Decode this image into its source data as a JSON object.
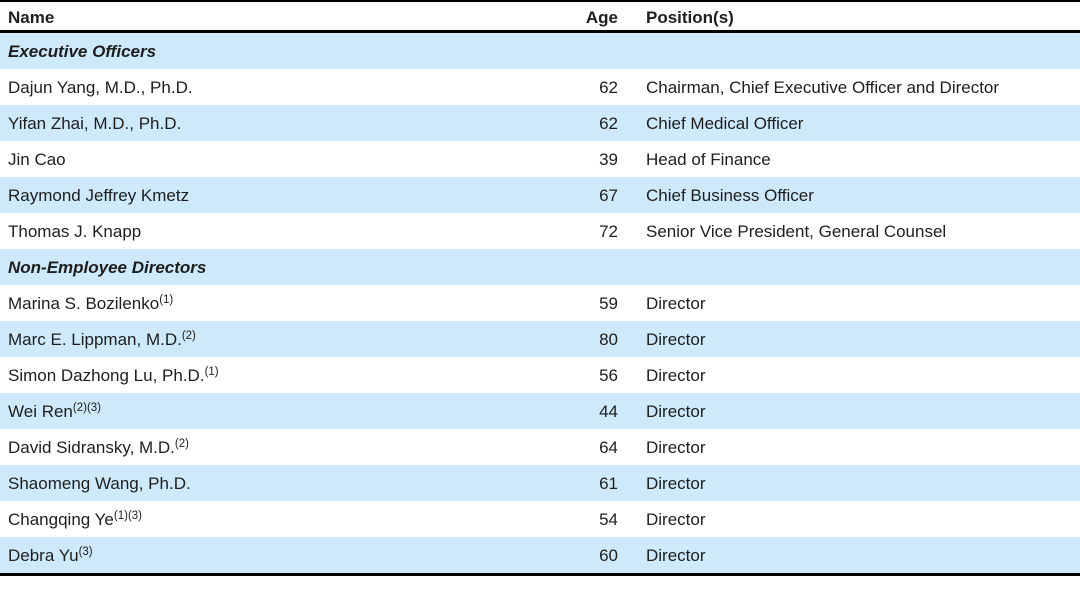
{
  "colors": {
    "row_highlight": "#cde9fa",
    "text": "#1e1e1e",
    "rule": "#000000",
    "row_alt": "#ffffff"
  },
  "table": {
    "columns": [
      "Name",
      "Age",
      "Position(s)"
    ],
    "rows": [
      {
        "type": "section",
        "label": "Executive Officers",
        "age": "",
        "position": ""
      },
      {
        "type": "person",
        "name": "Dajun Yang, M.D., Ph.D.",
        "sup": "",
        "age": "62",
        "position": "Chairman, Chief Executive Officer and Director"
      },
      {
        "type": "person",
        "name": "Yifan Zhai, M.D., Ph.D.",
        "sup": "",
        "age": "62",
        "position": "Chief Medical Officer"
      },
      {
        "type": "person",
        "name": "Jin Cao",
        "sup": "",
        "age": "39",
        "position": "Head of Finance"
      },
      {
        "type": "person",
        "name": "Raymond Jeffrey Kmetz",
        "sup": "",
        "age": "67",
        "position": "Chief Business Officer"
      },
      {
        "type": "person",
        "name": "Thomas J. Knapp",
        "sup": "",
        "age": "72",
        "position": "Senior Vice President, General Counsel"
      },
      {
        "type": "section",
        "label": "Non-Employee Directors",
        "age": "",
        "position": ""
      },
      {
        "type": "person",
        "name": "Marina S. Bozilenko",
        "sup": "(1)",
        "age": "59",
        "position": "Director"
      },
      {
        "type": "person",
        "name": "Marc E. Lippman, M.D.",
        "sup": "(2)",
        "age": "80",
        "position": "Director"
      },
      {
        "type": "person",
        "name": "Simon Dazhong Lu, Ph.D.",
        "sup": "(1)",
        "age": "56",
        "position": "Director"
      },
      {
        "type": "person",
        "name": "Wei Ren",
        "sup": "(2)(3)",
        "age": "44",
        "position": "Director"
      },
      {
        "type": "person",
        "name": "David Sidransky, M.D.",
        "sup": "(2)",
        "age": "64",
        "position": "Director"
      },
      {
        "type": "person",
        "name": "Shaomeng Wang, Ph.D.",
        "sup": "",
        "age": "61",
        "position": "Director"
      },
      {
        "type": "person",
        "name": "Changqing Ye",
        "sup": "(1)(3)",
        "age": "54",
        "position": "Director"
      },
      {
        "type": "person",
        "name": "Debra Yu",
        "sup": "(3)",
        "age": "60",
        "position": "Director"
      }
    ]
  }
}
